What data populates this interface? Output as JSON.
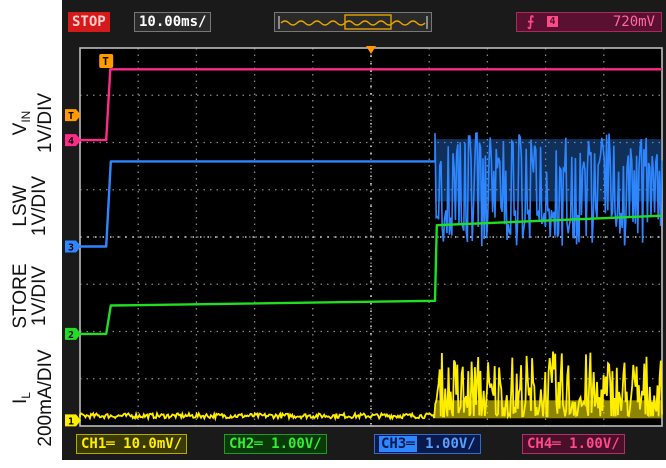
{
  "top_bar": {
    "run_state": "STOP",
    "timebase": "10.00ms/",
    "trigger_level": "720mV"
  },
  "bottom_bar": {
    "ch1": "CH1═ 10.0mV/",
    "ch2": "CH2═ 1.00V/",
    "ch3_value": "1.00V/",
    "ch4": "CH4═ 1.00V/"
  },
  "markers": {
    "trigger": "T",
    "ch4": "4",
    "ch3": "3",
    "ch2": "2",
    "ch1": "1"
  },
  "labels": {
    "vin_main": "V",
    "vin_sub": "IN",
    "vin_scale": "1V/DIV",
    "lsw": "LSW",
    "lsw_scale": "1V/DIV",
    "store": "STORE",
    "store_scale": "1V/DIV",
    "il_main": "I",
    "il_sub": "L",
    "il_scale": "200mA/DIV"
  },
  "colors": {
    "ch1": "#ffee00",
    "ch2": "#22dd22",
    "ch3": "#2f86ff",
    "ch4": "#ff2a8a",
    "trigger": "#ff9a00",
    "grid": "#8a8a8a"
  },
  "chart_data": {
    "type": "line",
    "x_unit": "ms",
    "x_range": [
      0,
      100
    ],
    "divisions": {
      "x": 10,
      "y": 8
    },
    "series": [
      {
        "name": "VIN",
        "channel": 4,
        "volts_per_div": 1,
        "points": [
          [
            0,
            0
          ],
          [
            4.5,
            0
          ],
          [
            5.2,
            1.5
          ],
          [
            100,
            1.5
          ]
        ]
      },
      {
        "name": "LSW",
        "channel": 3,
        "volts_per_div": 1,
        "points": [
          [
            0,
            0
          ],
          [
            4.5,
            0
          ],
          [
            5.3,
            1.8
          ],
          [
            61,
            1.8
          ]
        ],
        "switching": {
          "from_ms": 61,
          "to_ms": 100,
          "low": 0,
          "high": 2.4
        }
      },
      {
        "name": "STORE",
        "channel": 2,
        "volts_per_div": 1,
        "points": [
          [
            0,
            0
          ],
          [
            4.5,
            0
          ],
          [
            5.3,
            0.6
          ],
          [
            61,
            0.7
          ],
          [
            61.3,
            2.3
          ],
          [
            100,
            2.5
          ]
        ]
      },
      {
        "name": "IL",
        "channel": 1,
        "current_per_div": "200mA",
        "baseline": 0.05,
        "bursts": {
          "from_ms": 61,
          "to_ms": 100,
          "max": 1.4
        }
      }
    ]
  }
}
